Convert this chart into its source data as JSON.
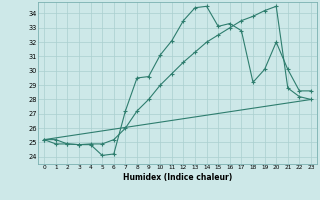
{
  "xlabel": "Humidex (Indice chaleur)",
  "background_color": "#cde8e8",
  "line_color": "#2e7d6e",
  "grid_color": "#aacfcf",
  "xlim": [
    -0.5,
    23.5
  ],
  "ylim": [
    23.5,
    34.8
  ],
  "xticks": [
    0,
    1,
    2,
    3,
    4,
    5,
    6,
    7,
    8,
    9,
    10,
    11,
    12,
    13,
    14,
    15,
    16,
    17,
    18,
    19,
    20,
    21,
    22,
    23
  ],
  "yticks": [
    24,
    25,
    26,
    27,
    28,
    29,
    30,
    31,
    32,
    33,
    34
  ],
  "line1_x": [
    0,
    1,
    2,
    3,
    4,
    5,
    6,
    7,
    8,
    9,
    10,
    11,
    12,
    13,
    14,
    15,
    16,
    17,
    18,
    19,
    20,
    21,
    22,
    23
  ],
  "line1_y": [
    25.2,
    24.9,
    24.9,
    24.85,
    24.85,
    24.1,
    24.2,
    27.2,
    29.5,
    29.6,
    31.1,
    32.1,
    33.5,
    34.4,
    34.5,
    33.1,
    33.3,
    32.8,
    29.2,
    30.1,
    32.0,
    30.1,
    28.6,
    28.6
  ],
  "line2_x": [
    0,
    1,
    2,
    3,
    4,
    5,
    6,
    7,
    8,
    9,
    10,
    11,
    12,
    13,
    14,
    15,
    16,
    17,
    18,
    19,
    20,
    21,
    22,
    23
  ],
  "line2_y": [
    25.2,
    25.2,
    24.9,
    24.85,
    24.9,
    24.9,
    25.2,
    26.0,
    27.2,
    28.0,
    29.0,
    29.8,
    30.6,
    31.3,
    32.0,
    32.5,
    33.0,
    33.5,
    33.8,
    34.2,
    34.5,
    28.8,
    28.2,
    28.0
  ],
  "line3_x": [
    0,
    23
  ],
  "line3_y": [
    25.2,
    28.0
  ]
}
